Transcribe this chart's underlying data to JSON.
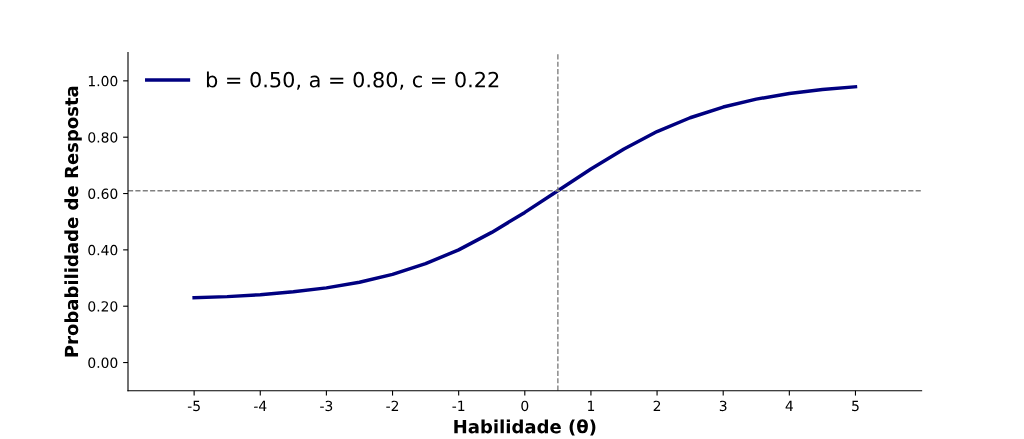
{
  "chart_data": {
    "type": "line",
    "xlabel": "Habilidade (θ)",
    "ylabel": "Probabilidade de Resposta",
    "x": [
      -5,
      -4.5,
      -4,
      -3.5,
      -3,
      -2.5,
      -2,
      -1.5,
      -1,
      -0.5,
      0,
      0.5,
      1,
      1.5,
      2,
      2.5,
      3,
      3.5,
      4,
      4.5,
      5
    ],
    "series": [
      {
        "name": "b = 0.50, a = 0.80, c = 0.22",
        "color": "#000080",
        "values": [
          0.23,
          0.234,
          0.241,
          0.251,
          0.265,
          0.285,
          0.313,
          0.351,
          0.4,
          0.462,
          0.533,
          0.61,
          0.687,
          0.758,
          0.82,
          0.869,
          0.907,
          0.935,
          0.955,
          0.969,
          0.979
        ]
      }
    ],
    "xlim": [
      -6,
      6
    ],
    "xticks": [
      {
        "value": -5,
        "label": "-5"
      },
      {
        "value": -4,
        "label": "-4"
      },
      {
        "value": -3,
        "label": "-3"
      },
      {
        "value": -2,
        "label": "-2"
      },
      {
        "value": -1,
        "label": "-1"
      },
      0,
      1,
      2,
      3,
      4,
      5
    ],
    "ylim": [
      -0.1,
      1.1
    ],
    "yticks": [
      {
        "value": 0,
        "label": "0.00"
      },
      {
        "value": 0.2,
        "label": "0.20"
      },
      {
        "value": 0.4,
        "label": "0.40"
      },
      {
        "value": 0.6,
        "label": "0.60"
      },
      {
        "value": 0.8,
        "label": "0.80"
      },
      {
        "value": 1.0,
        "label": "1.00"
      }
    ],
    "ref_lines": [
      {
        "axis": "x",
        "value": 0.5,
        "color": "#808080",
        "line_style": "dashed"
      },
      {
        "axis": "y",
        "value": 0.61,
        "color": "#808080",
        "line_style": "dashed"
      }
    ],
    "legend": "top left",
    "grid": false,
    "marker": "none",
    "line_style": "solid"
  }
}
